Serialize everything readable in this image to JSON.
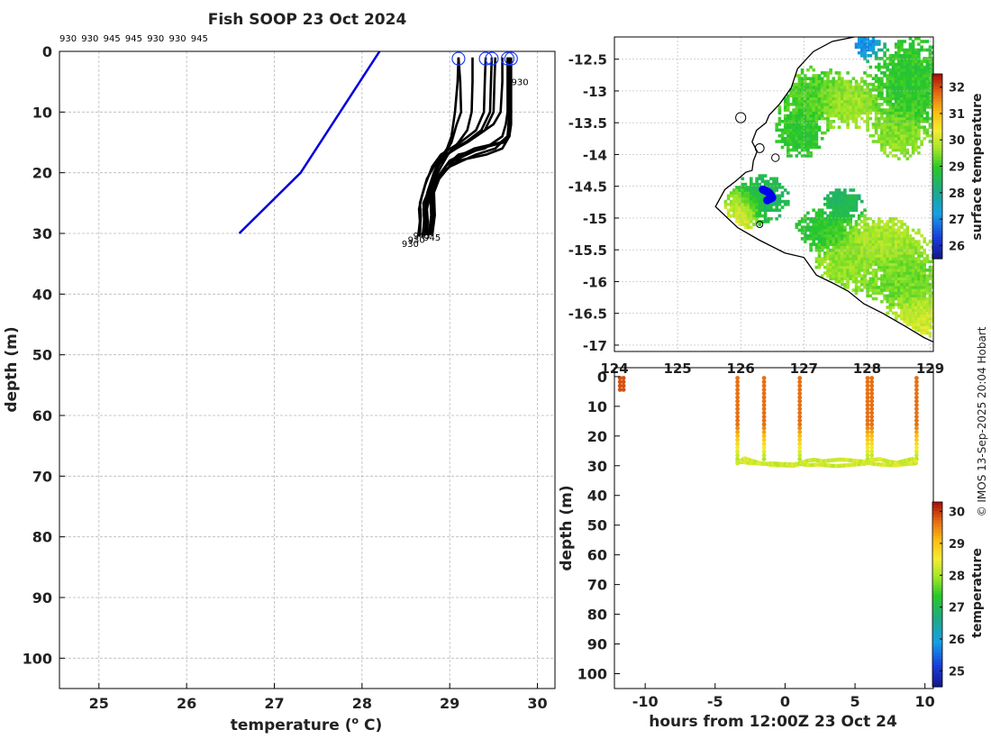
{
  "title": "Fish SOOP 23 Oct 2024",
  "watermark": "© IMOS 13-Sep-2025 20:04 Hobart",
  "colors": {
    "profile_line": "#000000",
    "climatology_line": "#0000dd",
    "marker": "#1f3cff",
    "grid": "#b9b9b9",
    "land_outline": "#000000"
  },
  "chart_data": [
    {
      "id": "profile",
      "type": "line",
      "title": "Fish SOOP 23 Oct 2024",
      "xlabel": "temperature (",
      "xlabel_sup": "o",
      "xlabel_tail": " C)",
      "ylabel": "depth (m)",
      "xlim": [
        24.55,
        30.2
      ],
      "ylim": [
        105,
        0
      ],
      "xticks": [
        25,
        26,
        27,
        28,
        29,
        30
      ],
      "yticks": [
        0,
        10,
        20,
        30,
        40,
        50,
        60,
        70,
        80,
        90,
        100
      ],
      "top_labels": [
        "930",
        "930",
        "945",
        "945",
        "930",
        "930",
        "945"
      ],
      "climatology": {
        "name": "climatology",
        "x": [
          28.2,
          27.3,
          26.6
        ],
        "y": [
          0,
          20,
          30
        ]
      },
      "profiles": [
        {
          "x": [
            29.1,
            29.09,
            29.06,
            29.02,
            28.97,
            28.88,
            28.82,
            28.78,
            28.75,
            28.72,
            28.73,
            28.72
          ],
          "y": [
            1,
            5,
            10,
            14,
            16,
            18,
            20,
            22,
            24,
            26,
            28,
            30.2
          ]
        },
        {
          "x": [
            29.1,
            29.12,
            29.13,
            29.08,
            29.02,
            28.9,
            28.84,
            28.8,
            28.77,
            28.74,
            28.75,
            28.74
          ],
          "y": [
            1,
            5,
            10,
            12,
            15,
            18,
            20,
            22,
            24,
            26,
            28,
            30.3
          ]
        },
        {
          "x": [
            29.26,
            29.26,
            29.25,
            29.2,
            29.1,
            28.98,
            28.9,
            28.83,
            28.78,
            28.74,
            28.72,
            28.71
          ],
          "y": [
            1,
            5,
            10,
            13,
            15,
            17,
            19,
            21,
            23,
            25,
            27,
            30.4
          ]
        },
        {
          "x": [
            29.41,
            29.4,
            29.39,
            29.3,
            29.12,
            28.9,
            28.8,
            28.72,
            28.68,
            28.65,
            28.66,
            28.64
          ],
          "y": [
            1,
            5,
            10,
            13,
            15,
            17,
            19,
            22,
            24,
            26,
            28,
            30.5
          ]
        },
        {
          "x": [
            29.48,
            29.47,
            29.46,
            29.36,
            29.18,
            28.97,
            28.86,
            28.8,
            28.76,
            28.7,
            28.71,
            28.7
          ],
          "y": [
            1,
            5,
            10,
            13,
            15,
            17,
            19,
            21,
            23,
            25,
            27,
            30.3
          ]
        },
        {
          "x": [
            29.52,
            29.51,
            29.5,
            29.4,
            29.2,
            28.95,
            28.82,
            28.74,
            28.7,
            28.66,
            28.67,
            28.66
          ],
          "y": [
            1,
            5,
            10,
            13,
            15,
            17,
            19,
            21,
            23,
            25,
            27,
            30.4
          ]
        },
        {
          "x": [
            29.6,
            29.6,
            29.58,
            29.5,
            29.3,
            29.05,
            28.9,
            28.82,
            28.75,
            28.7,
            28.71,
            28.69
          ],
          "y": [
            1,
            5,
            10,
            12,
            14,
            16,
            18,
            20,
            23,
            26,
            28,
            30.5
          ]
        },
        {
          "x": [
            29.66,
            29.66,
            29.66,
            29.64,
            29.6,
            29.4,
            29.1,
            28.95,
            28.85,
            28.8,
            28.81,
            28.79
          ],
          "y": [
            1,
            5,
            10,
            12,
            14,
            16,
            17,
            19,
            21,
            24,
            27,
            30.2
          ]
        },
        {
          "x": [
            29.68,
            29.68,
            29.68,
            29.67,
            29.66,
            29.52,
            29.3,
            29.0,
            28.86,
            28.78,
            28.79,
            28.77
          ],
          "y": [
            1,
            5,
            10,
            12,
            14,
            16,
            17,
            19,
            21,
            24,
            27,
            30.3
          ]
        },
        {
          "x": [
            29.7,
            29.7,
            29.7,
            29.69,
            29.68,
            29.6,
            29.42,
            29.1,
            28.9,
            28.82,
            28.83,
            28.8
          ],
          "y": [
            1,
            5,
            10,
            12,
            14,
            16,
            17,
            18,
            20,
            23,
            27,
            30.4
          ]
        },
        {
          "x": [
            29.68,
            29.69,
            29.7,
            29.7,
            29.68,
            29.62,
            29.35,
            29.05,
            28.88,
            28.8,
            28.81,
            28.78
          ],
          "y": [
            1,
            5,
            10,
            12,
            14,
            15,
            16,
            18,
            21,
            24,
            27,
            30.2
          ]
        },
        {
          "x": [
            29.66,
            29.67,
            29.68,
            29.68,
            29.66,
            29.58,
            29.28,
            29.0,
            28.85,
            28.78,
            28.79,
            28.76
          ],
          "y": [
            1,
            5,
            10,
            12,
            14,
            15,
            16,
            18,
            21,
            24,
            27,
            30.3
          ]
        }
      ],
      "surface_markers": [
        29.1,
        29.41,
        29.48,
        29.66,
        29.7
      ],
      "end_labels": [
        "930",
        "945",
        "945",
        "930"
      ],
      "side_label": "930"
    },
    {
      "id": "sst-map",
      "type": "heatmap",
      "xlabel": "",
      "ylabel": "",
      "xlim": [
        124.0,
        129.05
      ],
      "ylim": [
        -17.1,
        -12.15
      ],
      "xticks": [
        124,
        125,
        126,
        127,
        128,
        129
      ],
      "xtick_labels": [
        "124",
        "125",
        "126",
        "127",
        "128",
        "129"
      ],
      "yticks": [
        -12.5,
        -13,
        -13.5,
        -14,
        -14.5,
        -15,
        -15.5,
        -16,
        -16.5,
        -17
      ],
      "ytick_labels": [
        "-12.5",
        "-13",
        "-13.5",
        "-14",
        "-14.5",
        "-15",
        "-15.5",
        "-16",
        "-16.5",
        "-17"
      ],
      "colorbar_label": "surface temperature",
      "colorbar_ticks": [
        26,
        27,
        28,
        29,
        30,
        31,
        32
      ],
      "colorbar_range": [
        25.5,
        32.5
      ],
      "patches": [
        {
          "lon": 128.7,
          "lat": -12.9,
          "sx": 0.55,
          "sy": 0.55,
          "t": 29.0
        },
        {
          "lon": 127.1,
          "lat": -13.1,
          "sx": 0.45,
          "sy": 0.35,
          "t": 29.2
        },
        {
          "lon": 127.7,
          "lat": -13.2,
          "sx": 0.35,
          "sy": 0.3,
          "t": 29.8
        },
        {
          "lon": 128.5,
          "lat": -13.7,
          "sx": 0.35,
          "sy": 0.3,
          "t": 29.6
        },
        {
          "lon": 126.9,
          "lat": -13.7,
          "sx": 0.3,
          "sy": 0.3,
          "t": 29.0
        },
        {
          "lon": 126.3,
          "lat": -14.7,
          "sx": 0.35,
          "sy": 0.3,
          "t": 28.6
        },
        {
          "lon": 127.6,
          "lat": -14.8,
          "sx": 0.25,
          "sy": 0.2,
          "t": 28.5
        },
        {
          "lon": 126.0,
          "lat": -14.9,
          "sx": 0.2,
          "sy": 0.25,
          "t": 30.3
        },
        {
          "lon": 127.3,
          "lat": -15.2,
          "sx": 0.35,
          "sy": 0.25,
          "t": 28.9
        },
        {
          "lon": 128.2,
          "lat": -15.4,
          "sx": 0.55,
          "sy": 0.3,
          "t": 29.8
        },
        {
          "lon": 128.6,
          "lat": -16.0,
          "sx": 0.5,
          "sy": 0.4,
          "t": 29.4
        },
        {
          "lon": 127.6,
          "lat": -15.8,
          "sx": 0.35,
          "sy": 0.3,
          "t": 29.6
        },
        {
          "lon": 128.8,
          "lat": -16.6,
          "sx": 0.3,
          "sy": 0.3,
          "t": 30.1
        },
        {
          "lon": 128.0,
          "lat": -12.3,
          "sx": 0.15,
          "sy": 0.15,
          "t": 27.0
        }
      ],
      "coastline": [
        [
          125.6,
          -14.82
        ],
        [
          125.75,
          -14.55
        ],
        [
          125.92,
          -14.42
        ],
        [
          126.08,
          -14.28
        ],
        [
          126.18,
          -14.25
        ],
        [
          126.2,
          -14.1
        ],
        [
          126.26,
          -13.95
        ],
        [
          126.18,
          -13.8
        ],
        [
          126.25,
          -13.62
        ],
        [
          126.4,
          -13.5
        ],
        [
          126.45,
          -13.38
        ],
        [
          126.62,
          -13.2
        ],
        [
          126.8,
          -12.95
        ],
        [
          126.9,
          -12.65
        ],
        [
          127.15,
          -12.38
        ],
        [
          127.45,
          -12.22
        ],
        [
          127.8,
          -12.15
        ]
      ],
      "south_coast": [
        [
          125.6,
          -14.82
        ],
        [
          125.95,
          -15.15
        ],
        [
          126.3,
          -15.35
        ],
        [
          126.7,
          -15.55
        ],
        [
          127.0,
          -15.62
        ],
        [
          127.2,
          -15.9
        ],
        [
          127.45,
          -16.02
        ],
        [
          127.7,
          -16.15
        ],
        [
          127.95,
          -16.35
        ],
        [
          128.25,
          -16.5
        ],
        [
          128.6,
          -16.7
        ],
        [
          128.9,
          -16.88
        ],
        [
          129.05,
          -16.95
        ]
      ],
      "islands": [
        [
          126.0,
          -13.42,
          0.08,
          0.08
        ],
        [
          126.3,
          -13.9,
          0.07,
          0.07
        ],
        [
          126.55,
          -14.05,
          0.06,
          0.06
        ],
        [
          126.3,
          -15.1,
          0.05,
          0.05
        ]
      ],
      "track": [
        [
          126.35,
          -14.55
        ],
        [
          126.45,
          -14.6
        ],
        [
          126.5,
          -14.68
        ],
        [
          126.42,
          -14.72
        ]
      ]
    },
    {
      "id": "timeseries",
      "type": "scatter",
      "xlabel": "hours from 12:00Z 23 Oct 24",
      "ylabel": "depth (m)",
      "xlim": [
        -12.2,
        10.6
      ],
      "ylim": [
        105,
        -3
      ],
      "xticks": [
        -10,
        -5,
        0,
        5,
        10
      ],
      "yticks": [
        0,
        10,
        20,
        30,
        40,
        50,
        60,
        70,
        80,
        90,
        100
      ],
      "colorbar_label": "temperature",
      "colorbar_ticks": [
        25,
        26,
        27,
        28,
        29,
        30
      ],
      "colorbar_range": [
        24.5,
        30.3
      ],
      "casts": [
        -11.8,
        -11.55,
        -3.4,
        -1.5,
        1.05,
        5.9,
        6.2,
        9.4
      ],
      "bottom_series": [
        {
          "x": [
            -3.4,
            -2.7,
            -2.0,
            -1.4,
            -0.8,
            0.0,
            0.6,
            1.05,
            1.7,
            2.4,
            3.0,
            3.7,
            4.3,
            5.0,
            5.6,
            5.9,
            6.5,
            7.2,
            7.9,
            8.5,
            9.1,
            9.4
          ],
          "y": [
            28.6,
            29.0,
            29.2,
            29.4,
            29.8,
            29.9,
            30.0,
            29.4,
            29.8,
            29.6,
            29.9,
            30.1,
            29.9,
            29.6,
            29.4,
            29.0,
            29.5,
            29.7,
            29.9,
            29.5,
            29.3,
            29.1
          ]
        },
        {
          "x": [
            -3.4,
            -2.9,
            -2.4,
            -1.9,
            -1.4,
            -0.9,
            -0.4,
            0.1,
            0.6,
            1.05,
            1.6,
            2.1,
            2.7,
            3.3,
            3.9,
            4.5,
            5.1,
            5.6,
            5.9,
            6.2,
            6.8,
            7.4,
            8.0,
            8.6,
            9.1,
            9.4
          ],
          "y": [
            29.2,
            27.5,
            28.3,
            29.0,
            29.4,
            29.2,
            29.4,
            29.5,
            29.6,
            29.2,
            28.3,
            28.0,
            28.5,
            28.2,
            27.9,
            28.1,
            28.4,
            28.6,
            28.9,
            28.0,
            27.8,
            28.6,
            29.0,
            28.3,
            27.7,
            28.7
          ]
        }
      ]
    }
  ]
}
